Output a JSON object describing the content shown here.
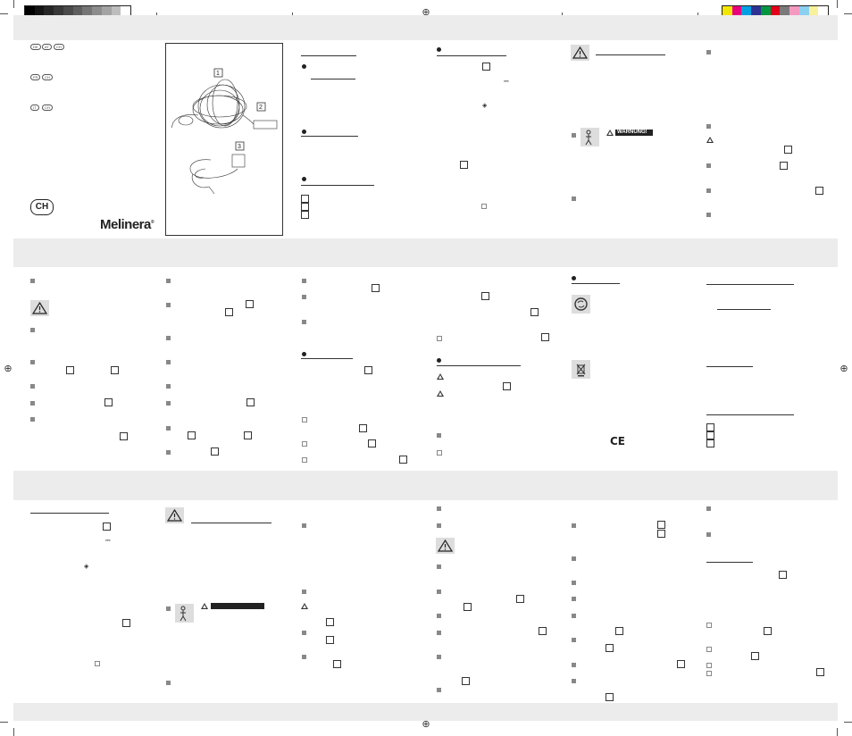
{
  "page": {
    "brand_logo": "Melinera",
    "country_badge": "CH",
    "language_badges_group1": [
      "DE",
      "AT",
      "CH"
    ],
    "language_badges_group2": [
      "FR",
      "CH"
    ],
    "language_badges_group3": [
      "IT",
      "CH"
    ],
    "warning_banner_label": "WARNUNG!",
    "ce_mark": "CE",
    "figure_callouts": [
      "1",
      "2",
      "3"
    ]
  },
  "colors": {
    "grayscale_bar": [
      "#000000",
      "#141414",
      "#262626",
      "#383838",
      "#4a4a4a",
      "#5e5e5e",
      "#757575",
      "#8c8c8c",
      "#a3a3a3",
      "#bdbdbd",
      "#ffffff"
    ],
    "color_bar": [
      "#f2e600",
      "#e6007e",
      "#00a0e3",
      "#2e3192",
      "#00963f",
      "#e2001a",
      "#7a7a7a",
      "#f49ac1",
      "#8ad0f0",
      "#f7f199",
      "#ffffff"
    ],
    "band": "#ececec"
  }
}
